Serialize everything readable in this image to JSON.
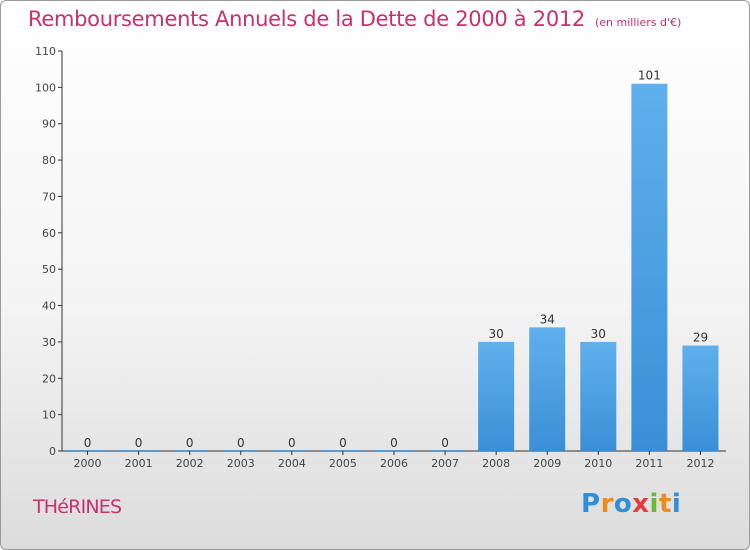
{
  "chart_data": {
    "type": "bar",
    "title": "Remboursements Annuels de la Dette de 2000 à 2012",
    "subtitle": "(en milliers d'€)",
    "categories": [
      "2000",
      "2001",
      "2002",
      "2003",
      "2004",
      "2005",
      "2006",
      "2007",
      "2008",
      "2009",
      "2010",
      "2011",
      "2012"
    ],
    "values": [
      0,
      0,
      0,
      0,
      0,
      0,
      0,
      0,
      30,
      34,
      30,
      101,
      29
    ],
    "ylim": [
      0,
      110
    ],
    "yticks": [
      0,
      10,
      20,
      30,
      40,
      50,
      60,
      70,
      80,
      90,
      100,
      110
    ],
    "grid": false,
    "bar_color": "#3a8fd6",
    "bar_color_light": "#5fb0ec",
    "axis_color": "#333333"
  },
  "footer": {
    "town": "THéRINES",
    "logo_letters": [
      "P",
      "r",
      "o",
      "x",
      "i",
      "t",
      "i"
    ],
    "logo_colors": [
      "#2f8fd8",
      "#f08a1c",
      "#2f8fd8",
      "#e83a3a",
      "#6ab83a",
      "#f08a1c",
      "#2f8fd8"
    ],
    "title_color": "#c8306e"
  }
}
